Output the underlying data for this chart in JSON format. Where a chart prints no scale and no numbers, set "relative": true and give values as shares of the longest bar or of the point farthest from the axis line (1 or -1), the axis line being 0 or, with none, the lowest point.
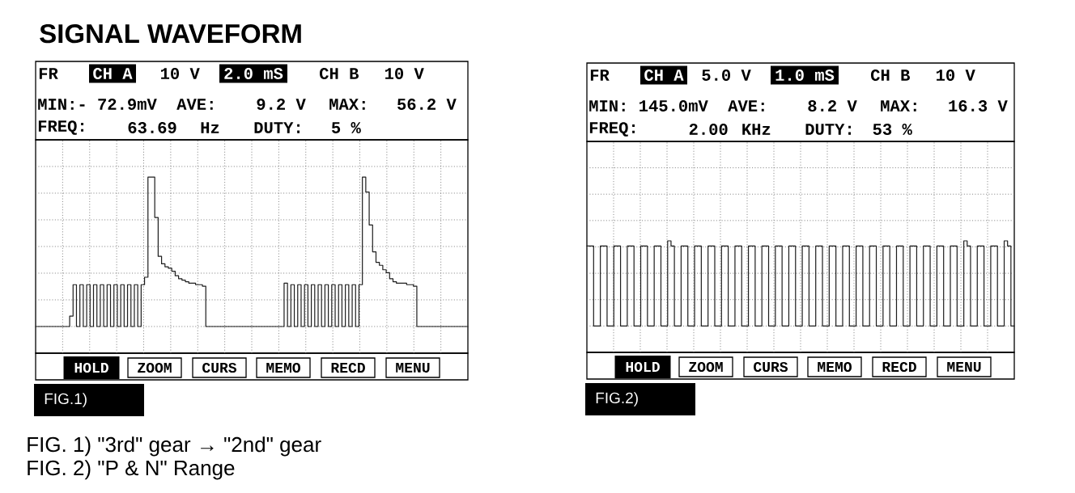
{
  "chart_data": [
    {
      "type": "step",
      "title": "SIGNAL WAVEFORM",
      "relative": true,
      "grid": true,
      "categories": [
        null,
        null,
        null,
        null,
        null,
        null,
        null,
        null,
        null,
        null,
        null,
        null,
        null,
        null,
        null,
        null,
        null,
        null,
        null,
        null,
        null,
        null,
        null,
        null,
        null,
        null,
        null,
        null,
        null,
        null,
        null,
        null,
        null,
        null,
        null,
        null,
        null,
        null,
        null,
        null,
        null,
        null,
        null,
        null,
        null,
        null,
        null,
        null,
        null,
        null,
        null,
        null,
        null,
        null,
        null,
        null,
        null,
        null,
        null,
        null,
        null,
        null,
        null,
        null,
        null,
        null,
        null,
        null,
        null,
        null,
        null,
        null,
        null,
        null,
        null,
        null,
        null,
        null,
        null,
        null,
        null,
        null,
        null,
        null,
        null,
        null,
        null,
        null,
        null,
        null,
        null,
        null,
        null,
        null,
        null,
        null,
        null,
        null,
        null,
        null,
        null,
        null,
        null,
        null,
        null,
        null,
        null,
        null,
        null,
        null,
        null,
        null,
        null,
        null,
        null,
        null,
        null,
        null,
        null,
        null,
        null,
        null,
        null,
        null,
        null,
        null,
        null,
        null
      ],
      "series": [
        {
          "color": "#1e1e1e",
          "values": [
            0,
            0,
            0,
            0,
            0,
            0,
            0,
            0,
            0,
            0,
            0.07,
            0.28,
            0,
            0.28,
            0,
            0.28,
            0,
            0.28,
            0,
            0.28,
            0,
            0.28,
            0,
            0.28,
            0,
            0.28,
            0,
            0.28,
            0,
            0.28,
            0,
            0.28,
            0.33,
            1,
            1,
            0.73,
            0.47,
            0.42,
            0.4,
            0.39,
            0.37,
            0.34,
            0.32,
            0.31,
            0.3,
            0.29,
            0.29,
            0.28,
            0.28,
            0.27,
            0,
            0,
            0,
            0,
            0,
            0,
            0,
            0,
            0,
            0,
            0,
            0,
            0,
            0,
            0,
            0,
            0,
            0,
            0,
            0,
            0,
            0,
            0,
            0.29,
            0,
            0.28,
            0,
            0.28,
            0,
            0.28,
            0,
            0.28,
            0,
            0.28,
            0,
            0.28,
            0,
            0.28,
            0,
            0.28,
            0,
            0.28,
            0,
            0.28,
            0,
            0.28,
            1,
            0.9,
            0.68,
            0.5,
            0.43,
            0.41,
            0.38,
            0.36,
            0.32,
            0.3,
            0.29,
            0.29,
            0.29,
            0.28,
            0.28,
            0.27,
            0,
            0,
            0,
            0,
            0,
            0,
            0,
            0,
            0,
            0,
            0,
            0,
            0,
            0,
            0,
            0
          ]
        }
      ],
      "annotations": [
        "FR",
        "CH A",
        "10 V",
        "2.0 mS",
        "CH B",
        "10 V",
        "MIN:- 72.9mV",
        "AVE:",
        "9.2 V",
        "MAX:",
        "56.2 V",
        "FREQ:",
        "63.69",
        "Hz",
        "DUTY:",
        "5 %",
        "HOLD",
        "ZOOM",
        "CURS",
        "MEMO",
        "RECD",
        "MENU",
        "FIG.1)",
        "FIG. 1) \"3rd\" gear → \"2nd\" gear"
      ]
    },
    {
      "type": "step",
      "relative": true,
      "grid": true,
      "categories": [
        null,
        null,
        null,
        null,
        null,
        null,
        null,
        null,
        null,
        null,
        null,
        null,
        null,
        null,
        null,
        null,
        null,
        null,
        null,
        null,
        null,
        null,
        null,
        null,
        null,
        null,
        null,
        null,
        null,
        null,
        null,
        null,
        null,
        null,
        null,
        null,
        null,
        null,
        null,
        null,
        null,
        null,
        null,
        null,
        null,
        null,
        null,
        null,
        null,
        null,
        null,
        null,
        null,
        null,
        null,
        null,
        null,
        null,
        null,
        null,
        null,
        null,
        null,
        null,
        null,
        null,
        null,
        null,
        null,
        null,
        null,
        null,
        null,
        null,
        null,
        null,
        null,
        null,
        null,
        null,
        null,
        null,
        null,
        null,
        null,
        null,
        null,
        null,
        null,
        null,
        null,
        null,
        null,
        null,
        null,
        null,
        null,
        null,
        null,
        null,
        null,
        null,
        null,
        null,
        null,
        null,
        null,
        null,
        null,
        null,
        null,
        null,
        null,
        null,
        null,
        null,
        null,
        null,
        null,
        null,
        null,
        null,
        null,
        null,
        null,
        null,
        null,
        null
      ],
      "series": [
        {
          "color": "#1e1e1e",
          "values": [
            0.94,
            0.94,
            0,
            0,
            0.94,
            0.94,
            0,
            0,
            0.94,
            0.94,
            0,
            0,
            0.94,
            0.94,
            0,
            0,
            0.94,
            0.94,
            0,
            0,
            0.94,
            0.94,
            0,
            0,
            1,
            0.94,
            0,
            0,
            0.94,
            0.94,
            0,
            0,
            0.94,
            0.94,
            0,
            0,
            0.94,
            0.94,
            0,
            0,
            0.94,
            0.94,
            0,
            0,
            0.94,
            0.94,
            0,
            0,
            0.94,
            0.94,
            0,
            0,
            0.94,
            0.94,
            0,
            0,
            0.94,
            0.94,
            0,
            0,
            0.94,
            0.94,
            0,
            0,
            0.94,
            0.94,
            0,
            0,
            0.94,
            0.94,
            0,
            0,
            0.94,
            0.94,
            0,
            0,
            0.94,
            0.94,
            0,
            0,
            0.94,
            0.94,
            0,
            0,
            0.94,
            0.94,
            0,
            0,
            0.94,
            0.94,
            0,
            0,
            0.94,
            0.94,
            0,
            0,
            0.94,
            0.94,
            0,
            0,
            0.94,
            0.94,
            0,
            0,
            0.94,
            0.94,
            0,
            0,
            0.94,
            0.94,
            0,
            0,
            1,
            0.94,
            0,
            0,
            0.94,
            0.94,
            0,
            0,
            0.94,
            0.94,
            0,
            0,
            1,
            0.94,
            0,
            0
          ]
        }
      ],
      "annotations": [
        "FR",
        "CH A",
        "5.0 V",
        "1.0 mS",
        "CH B",
        "10 V",
        "MIN: 145.0mV",
        "AVE:",
        "8.2 V",
        "MAX:",
        "16.3 V",
        "FREQ:",
        "2.00",
        "KHz",
        "DUTY:",
        "53 %",
        "HOLD",
        "ZOOM",
        "CURS",
        "MEMO",
        "RECD",
        "MENU",
        "FIG.2)",
        "FIG. 2) \"P & N\" Range"
      ]
    }
  ]
}
